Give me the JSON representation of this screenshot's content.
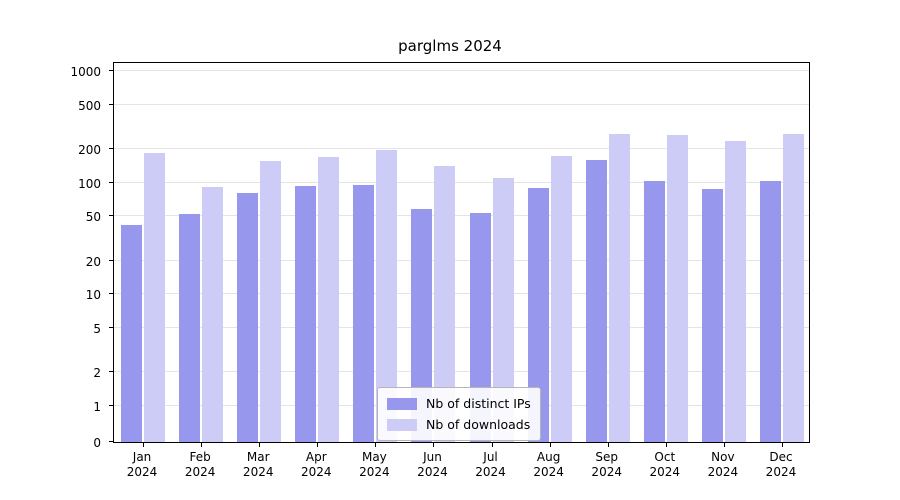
{
  "title": "parglms 2024",
  "chart_data": {
    "type": "bar",
    "title": "parglms 2024",
    "yscale": "symlog",
    "grid": true,
    "legend_position": "lower center",
    "categories": [
      "Jan",
      "Feb",
      "Mar",
      "Apr",
      "May",
      "Jun",
      "Jul",
      "Aug",
      "Sep",
      "Oct",
      "Nov",
      "Dec"
    ],
    "category_year": "2024",
    "yticks": [
      0,
      1,
      2,
      5,
      10,
      20,
      50,
      100,
      200,
      500,
      1000
    ],
    "ylim": [
      0,
      1200
    ],
    "series": [
      {
        "name": "Nb of distinct IPs",
        "color": "#9797ee",
        "values": [
          42,
          52,
          80,
          93,
          95,
          58,
          54,
          90,
          160,
          104,
          88,
          103
        ]
      },
      {
        "name": "Nb of downloads",
        "color": "#ccccf6",
        "values": [
          185,
          92,
          155,
          168,
          195,
          140,
          110,
          172,
          275,
          265,
          235,
          272
        ]
      }
    ]
  }
}
